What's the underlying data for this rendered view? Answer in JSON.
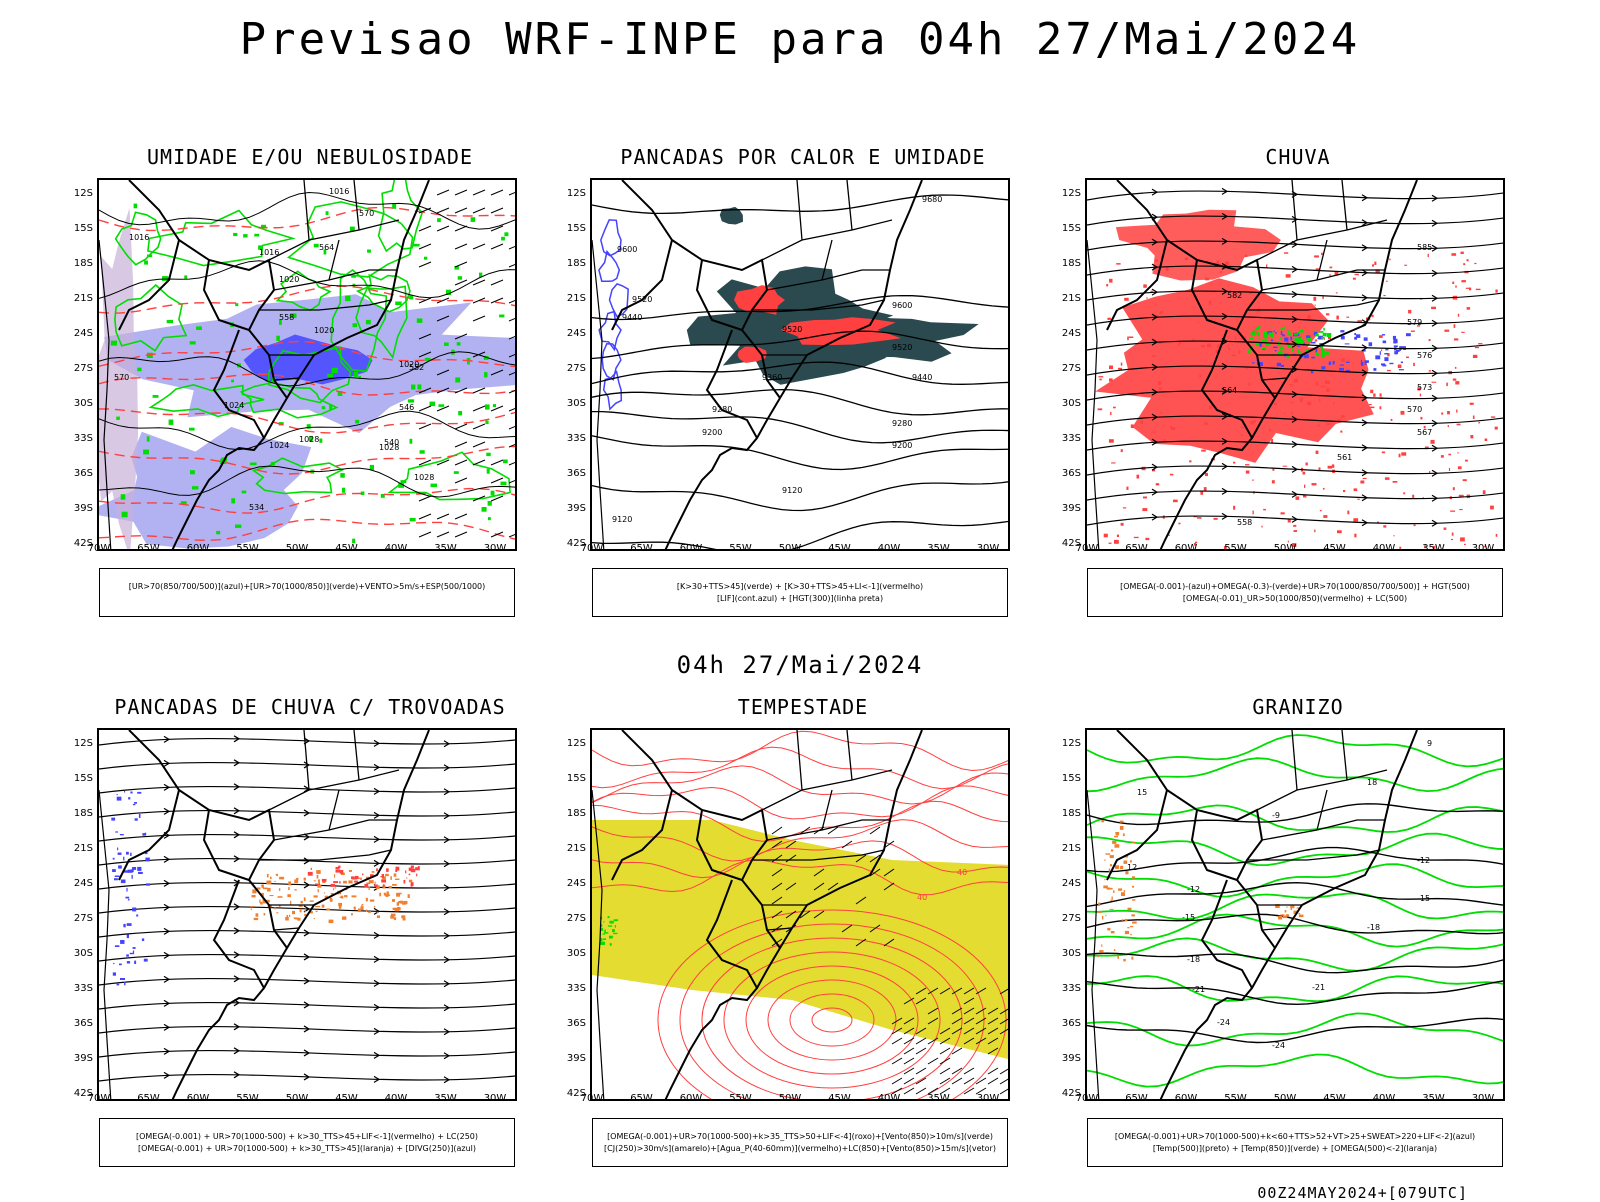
{
  "title": "Previsao WRF-INPE  para 04h 27/Mai/2024",
  "middle_title": "04h 27/Mai/2024",
  "footer": "00Z24MAY2024+[079UTC]",
  "axes": {
    "lat": [
      "12S",
      "15S",
      "18S",
      "21S",
      "24S",
      "27S",
      "30S",
      "33S",
      "36S",
      "39S",
      "42S"
    ],
    "lon": [
      "70W",
      "65W",
      "60W",
      "55W",
      "50W",
      "45W",
      "40W",
      "35W",
      "30W"
    ]
  },
  "panels": [
    {
      "title": "UMIDADE E/OU NEBULOSIDADE",
      "legend": [
        "[UR>70(850/700/500)](azul)+[UR>70(1000/850)](verde)+VENTO>5m/s+ESP(500/1000)"
      ],
      "contour_labels": [
        "1016",
        "1016",
        "1016",
        "1020",
        "1020",
        "1020",
        "1024",
        "1024",
        "1028",
        "1028",
        "1028",
        "570",
        "570",
        "564",
        "558",
        "552",
        "546",
        "540",
        "534"
      ]
    },
    {
      "title": "PANCADAS POR CALOR E UMIDADE",
      "legend": [
        "[K>30+TTS>45](verde) + [K>30+TTS>45+LI<-1](vermelho)",
        "[LIF](cont.azul) + [HGT(300)](linha preta)"
      ],
      "contour_labels": [
        "9680",
        "9600",
        "9600",
        "9520",
        "9520",
        "9520",
        "9440",
        "9440",
        "9360",
        "9280",
        "9280",
        "9200",
        "9200",
        "9120",
        "9120"
      ]
    },
    {
      "title": "CHUVA",
      "legend": [
        "[OMEGA(-0.001)-(azul)+OMEGA(-0.3)-(verde)+UR>70(1000/850/700/500)] + HGT(500)",
        "[OMEGA(-0.01)_UR>50(1000/850)(vermelho) + LC(500)"
      ],
      "contour_labels": [
        "585",
        "582",
        "579",
        "576",
        "573",
        "570",
        "567",
        "564",
        "561",
        "558"
      ]
    },
    {
      "title": "PANCADAS DE CHUVA C/ TROVOADAS",
      "legend": [
        "[OMEGA(-0.001) + UR>70(1000-500) + k>30_TTS>45+LIF<-1](vermelho) + LC(250)",
        "[OMEGA(-0.001) + UR>70(1000-500) + k>30_TTS>45](laranja) + [DIVG(250)](azul)"
      ],
      "contour_labels": []
    },
    {
      "title": "TEMPESTADE",
      "legend": [
        "[OMEGA(-0.001)+UR>70(1000-500)+k>35_TTS>50+LIF<-4](roxo)+[Vento(850)>10m/s](verde)",
        "[CJ(250)>30m/s](amarelo)+[Agua_P(40-60mm)](vermelho)+LC(850)+[Vento(850)>15m/s](vetor)"
      ],
      "contour_labels": [
        "40",
        "40"
      ]
    },
    {
      "title": "GRANIZO",
      "legend": [
        "[OMEGA(-0.001)+UR>70(1000-500)+k<60+TTS>52+VT>25+SWEAT>220+LIF<-2](azul)",
        "[Temp(500)](preto) + [Temp(850)](verde) + [OMEGA(500)<-2](laranja)"
      ],
      "contour_labels": [
        "-9",
        "-12",
        "-12",
        "-15",
        "-15",
        "-18",
        "-18",
        "-21",
        "-21",
        "-24",
        "-24",
        "9",
        "12",
        "15",
        "18"
      ]
    }
  ],
  "colors": {
    "green": "#00dd00",
    "blue": "#4444ff",
    "light_blue": "#9f9ff0",
    "red": "#ff4040",
    "dark_teal": "#2a4a4f",
    "orange": "#f08030",
    "yellow": "#e4dc30",
    "black": "#000000"
  }
}
